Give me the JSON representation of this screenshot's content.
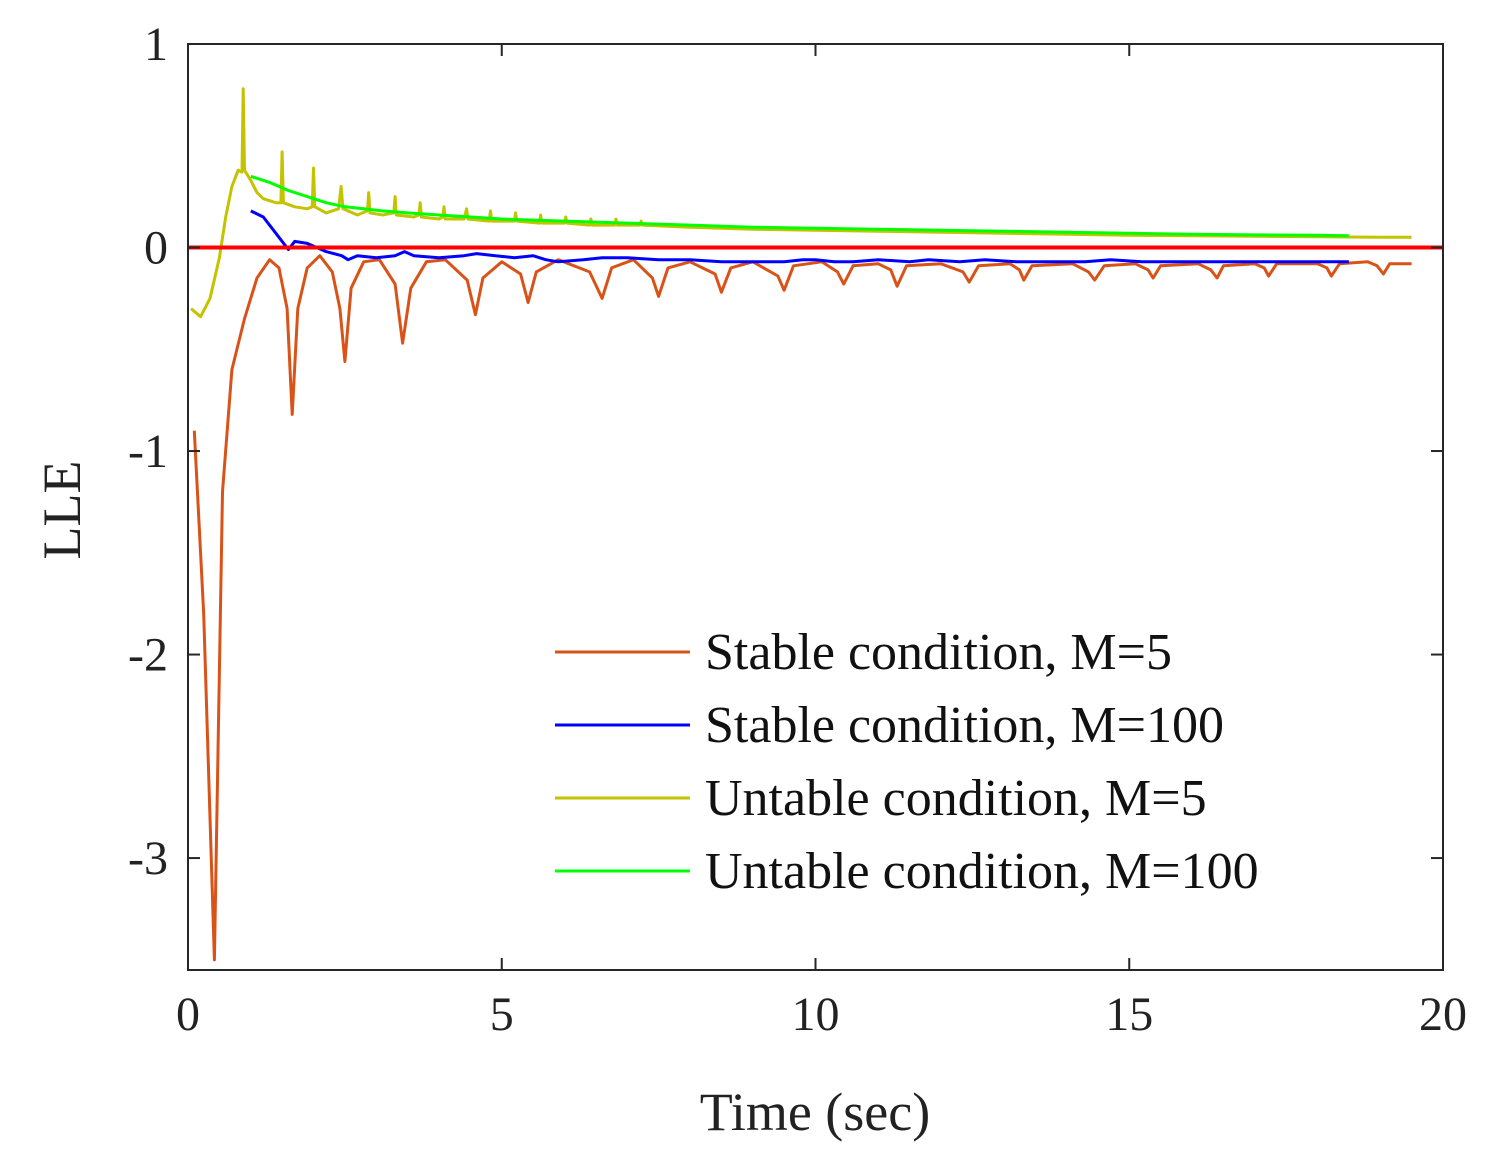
{
  "chart_data": {
    "type": "line",
    "title": "",
    "xlabel": "Time (sec)",
    "ylabel": "LLE",
    "xlim": [
      0,
      20
    ],
    "ylim": [
      -3.55,
      1
    ],
    "xticks": [
      0,
      5,
      10,
      15,
      20
    ],
    "yticks": [
      1,
      0,
      -1,
      -2,
      -3
    ],
    "xtick_labels": [
      "0",
      "5",
      "10",
      "15",
      "20"
    ],
    "ytick_labels": [
      "1",
      "0",
      "-1",
      "-2",
      "-3"
    ],
    "grid": false,
    "legend_position": "lower-right",
    "reference_line": {
      "y": 0,
      "color": "#ff0000"
    },
    "series": [
      {
        "name": "Stable condition, M=5",
        "color": "#d95319",
        "points": [
          [
            0.1,
            -0.9
          ],
          [
            0.25,
            -1.8
          ],
          [
            0.42,
            -3.5
          ],
          [
            0.55,
            -1.2
          ],
          [
            0.7,
            -0.6
          ],
          [
            0.9,
            -0.35
          ],
          [
            1.1,
            -0.15
          ],
          [
            1.3,
            -0.06
          ],
          [
            1.45,
            -0.1
          ],
          [
            1.58,
            -0.3
          ],
          [
            1.66,
            -0.82
          ],
          [
            1.75,
            -0.3
          ],
          [
            1.9,
            -0.1
          ],
          [
            2.1,
            -0.04
          ],
          [
            2.3,
            -0.12
          ],
          [
            2.42,
            -0.3
          ],
          [
            2.5,
            -0.56
          ],
          [
            2.6,
            -0.2
          ],
          [
            2.8,
            -0.07
          ],
          [
            3.05,
            -0.06
          ],
          [
            3.3,
            -0.18
          ],
          [
            3.42,
            -0.47
          ],
          [
            3.55,
            -0.2
          ],
          [
            3.8,
            -0.07
          ],
          [
            4.1,
            -0.06
          ],
          [
            4.45,
            -0.16
          ],
          [
            4.58,
            -0.33
          ],
          [
            4.7,
            -0.15
          ],
          [
            5.0,
            -0.07
          ],
          [
            5.3,
            -0.13
          ],
          [
            5.42,
            -0.27
          ],
          [
            5.55,
            -0.12
          ],
          [
            5.9,
            -0.06
          ],
          [
            6.4,
            -0.12
          ],
          [
            6.6,
            -0.25
          ],
          [
            6.75,
            -0.1
          ],
          [
            7.1,
            -0.06
          ],
          [
            7.4,
            -0.15
          ],
          [
            7.5,
            -0.24
          ],
          [
            7.65,
            -0.1
          ],
          [
            8.0,
            -0.07
          ],
          [
            8.4,
            -0.13
          ],
          [
            8.5,
            -0.22
          ],
          [
            8.65,
            -0.1
          ],
          [
            9.0,
            -0.07
          ],
          [
            9.4,
            -0.14
          ],
          [
            9.5,
            -0.21
          ],
          [
            9.65,
            -0.09
          ],
          [
            10.1,
            -0.07
          ],
          [
            10.35,
            -0.12
          ],
          [
            10.45,
            -0.18
          ],
          [
            10.6,
            -0.09
          ],
          [
            11.0,
            -0.08
          ],
          [
            11.2,
            -0.11
          ],
          [
            11.3,
            -0.19
          ],
          [
            11.45,
            -0.09
          ],
          [
            12.0,
            -0.08
          ],
          [
            12.35,
            -0.12
          ],
          [
            12.45,
            -0.17
          ],
          [
            12.6,
            -0.09
          ],
          [
            13.1,
            -0.08
          ],
          [
            13.25,
            -0.11
          ],
          [
            13.32,
            -0.16
          ],
          [
            13.45,
            -0.09
          ],
          [
            14.1,
            -0.08
          ],
          [
            14.35,
            -0.12
          ],
          [
            14.45,
            -0.16
          ],
          [
            14.6,
            -0.09
          ],
          [
            15.1,
            -0.08
          ],
          [
            15.3,
            -0.11
          ],
          [
            15.38,
            -0.15
          ],
          [
            15.5,
            -0.09
          ],
          [
            16.1,
            -0.08
          ],
          [
            16.3,
            -0.11
          ],
          [
            16.4,
            -0.15
          ],
          [
            16.5,
            -0.09
          ],
          [
            17.0,
            -0.08
          ],
          [
            17.15,
            -0.1
          ],
          [
            17.22,
            -0.14
          ],
          [
            17.35,
            -0.08
          ],
          [
            18.0,
            -0.08
          ],
          [
            18.15,
            -0.1
          ],
          [
            18.22,
            -0.14
          ],
          [
            18.35,
            -0.08
          ],
          [
            18.8,
            -0.07
          ],
          [
            18.95,
            -0.09
          ],
          [
            19.05,
            -0.13
          ],
          [
            19.15,
            -0.08
          ],
          [
            19.5,
            -0.08
          ]
        ]
      },
      {
        "name": "Stable condition, M=100",
        "color": "#0000ff",
        "points": [
          [
            1.0,
            0.18
          ],
          [
            1.2,
            0.15
          ],
          [
            1.4,
            0.07
          ],
          [
            1.6,
            -0.01
          ],
          [
            1.7,
            0.03
          ],
          [
            1.9,
            0.02
          ],
          [
            2.2,
            -0.02
          ],
          [
            2.45,
            -0.04
          ],
          [
            2.55,
            -0.06
          ],
          [
            2.7,
            -0.04
          ],
          [
            3.0,
            -0.05
          ],
          [
            3.3,
            -0.04
          ],
          [
            3.45,
            -0.02
          ],
          [
            3.6,
            -0.04
          ],
          [
            4.0,
            -0.05
          ],
          [
            4.4,
            -0.04
          ],
          [
            4.6,
            -0.03
          ],
          [
            4.9,
            -0.04
          ],
          [
            5.2,
            -0.05
          ],
          [
            5.5,
            -0.04
          ],
          [
            5.7,
            -0.06
          ],
          [
            5.9,
            -0.07
          ],
          [
            6.3,
            -0.06
          ],
          [
            6.6,
            -0.05
          ],
          [
            7.0,
            -0.05
          ],
          [
            7.5,
            -0.06
          ],
          [
            8.0,
            -0.06
          ],
          [
            8.5,
            -0.07
          ],
          [
            9.0,
            -0.07
          ],
          [
            9.5,
            -0.07
          ],
          [
            9.8,
            -0.06
          ],
          [
            10.0,
            -0.06
          ],
          [
            10.3,
            -0.07
          ],
          [
            10.6,
            -0.07
          ],
          [
            11.0,
            -0.06
          ],
          [
            11.5,
            -0.07
          ],
          [
            11.8,
            -0.06
          ],
          [
            12.3,
            -0.07
          ],
          [
            12.7,
            -0.06
          ],
          [
            13.2,
            -0.07
          ],
          [
            13.8,
            -0.07
          ],
          [
            14.3,
            -0.07
          ],
          [
            14.7,
            -0.06
          ],
          [
            15.2,
            -0.07
          ],
          [
            15.6,
            -0.07
          ],
          [
            16.0,
            -0.07
          ],
          [
            16.5,
            -0.07
          ],
          [
            17.0,
            -0.07
          ],
          [
            17.5,
            -0.07
          ],
          [
            18.0,
            -0.07
          ],
          [
            18.5,
            -0.07
          ]
        ]
      },
      {
        "name": "Untable condition, M=5",
        "color": "#c3c300",
        "points": [
          [
            0.05,
            -0.3
          ],
          [
            0.2,
            -0.34
          ],
          [
            0.35,
            -0.25
          ],
          [
            0.5,
            -0.05
          ],
          [
            0.6,
            0.15
          ],
          [
            0.7,
            0.3
          ],
          [
            0.8,
            0.38
          ],
          [
            0.86,
            0.37
          ],
          [
            0.88,
            0.78
          ],
          [
            0.9,
            0.38
          ],
          [
            1.0,
            0.33
          ],
          [
            1.1,
            0.27
          ],
          [
            1.2,
            0.24
          ],
          [
            1.4,
            0.22
          ],
          [
            1.48,
            0.22
          ],
          [
            1.5,
            0.47
          ],
          [
            1.52,
            0.22
          ],
          [
            1.7,
            0.2
          ],
          [
            1.9,
            0.19
          ],
          [
            1.98,
            0.2
          ],
          [
            2.0,
            0.39
          ],
          [
            2.02,
            0.2
          ],
          [
            2.2,
            0.17
          ],
          [
            2.4,
            0.19
          ],
          [
            2.44,
            0.3
          ],
          [
            2.47,
            0.19
          ],
          [
            2.7,
            0.16
          ],
          [
            2.86,
            0.18
          ],
          [
            2.88,
            0.27
          ],
          [
            2.9,
            0.17
          ],
          [
            3.1,
            0.16
          ],
          [
            3.28,
            0.17
          ],
          [
            3.3,
            0.25
          ],
          [
            3.32,
            0.16
          ],
          [
            3.6,
            0.15
          ],
          [
            3.68,
            0.16
          ],
          [
            3.7,
            0.22
          ],
          [
            3.72,
            0.15
          ],
          [
            4.0,
            0.14
          ],
          [
            4.06,
            0.15
          ],
          [
            4.08,
            0.2
          ],
          [
            4.1,
            0.14
          ],
          [
            4.4,
            0.14
          ],
          [
            4.44,
            0.19
          ],
          [
            4.46,
            0.14
          ],
          [
            4.8,
            0.13
          ],
          [
            4.82,
            0.18
          ],
          [
            4.84,
            0.13
          ],
          [
            5.2,
            0.13
          ],
          [
            5.22,
            0.17
          ],
          [
            5.24,
            0.13
          ],
          [
            5.6,
            0.12
          ],
          [
            5.62,
            0.16
          ],
          [
            5.64,
            0.12
          ],
          [
            6.0,
            0.12
          ],
          [
            6.02,
            0.15
          ],
          [
            6.04,
            0.12
          ],
          [
            6.4,
            0.11
          ],
          [
            6.42,
            0.14
          ],
          [
            6.44,
            0.11
          ],
          [
            6.8,
            0.11
          ],
          [
            6.82,
            0.14
          ],
          [
            6.84,
            0.11
          ],
          [
            7.2,
            0.11
          ],
          [
            7.22,
            0.13
          ],
          [
            7.24,
            0.11
          ],
          [
            8.0,
            0.1
          ],
          [
            9.0,
            0.09
          ],
          [
            10.0,
            0.085
          ],
          [
            11.0,
            0.08
          ],
          [
            12.0,
            0.075
          ],
          [
            13.0,
            0.07
          ],
          [
            14.0,
            0.065
          ],
          [
            15.0,
            0.06
          ],
          [
            16.0,
            0.058
          ],
          [
            17.0,
            0.055
          ],
          [
            18.0,
            0.053
          ],
          [
            19.0,
            0.05
          ],
          [
            19.5,
            0.05
          ]
        ]
      },
      {
        "name": "Untable condition, M=100",
        "color": "#00ff00",
        "points": [
          [
            1.0,
            0.35
          ],
          [
            1.3,
            0.32
          ],
          [
            1.6,
            0.28
          ],
          [
            1.9,
            0.25
          ],
          [
            2.2,
            0.22
          ],
          [
            2.5,
            0.2
          ],
          [
            2.8,
            0.19
          ],
          [
            3.1,
            0.18
          ],
          [
            3.5,
            0.17
          ],
          [
            4.0,
            0.16
          ],
          [
            4.5,
            0.15
          ],
          [
            5.0,
            0.14
          ],
          [
            6.0,
            0.13
          ],
          [
            7.0,
            0.12
          ],
          [
            8.0,
            0.11
          ],
          [
            9.0,
            0.1
          ],
          [
            10.0,
            0.095
          ],
          [
            11.0,
            0.09
          ],
          [
            12.0,
            0.085
          ],
          [
            13.0,
            0.08
          ],
          [
            14.0,
            0.075
          ],
          [
            15.0,
            0.07
          ],
          [
            16.0,
            0.065
          ],
          [
            17.0,
            0.062
          ],
          [
            18.0,
            0.06
          ],
          [
            18.5,
            0.058
          ]
        ]
      }
    ]
  }
}
